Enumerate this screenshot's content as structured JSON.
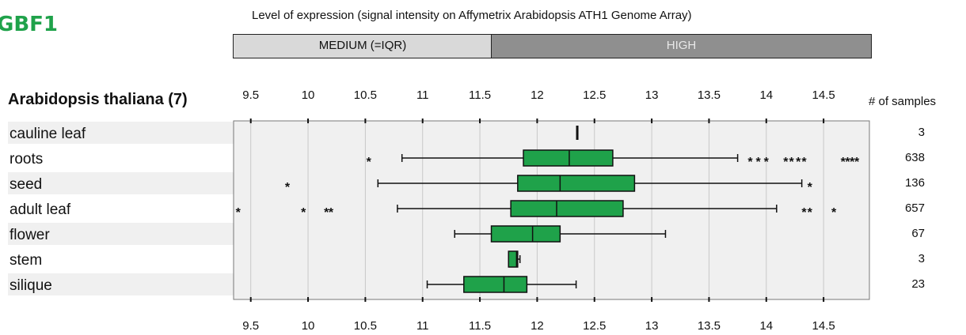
{
  "gene": "GBF1",
  "level_title": "Level of expression (signal intensity on Affymetrix Arabidopsis ATH1 Genome Array)",
  "levels": {
    "medium": "MEDIUM (=IQR)",
    "high": "HIGH"
  },
  "species_label": "Arabidopsis thaliana (7)",
  "samples_header": "# of samples",
  "colors": {
    "box": "#1fa24a",
    "plot_bg": "#f0f0f0",
    "title_green": "#1fa24a"
  },
  "chart_data": {
    "type": "boxplot",
    "xlim": [
      9.35,
      14.9
    ],
    "ticks": [
      "9.5",
      "10",
      "10.5",
      "11",
      "11.5",
      "12",
      "12.5",
      "13",
      "13.5",
      "14",
      "14.5"
    ],
    "tick_values": [
      9.5,
      10,
      10.5,
      11,
      11.5,
      12,
      12.5,
      13,
      13.5,
      14,
      14.5
    ],
    "grid": true,
    "rows": [
      {
        "tissue": "cauline leaf",
        "samples": "3",
        "median": 12.35,
        "marker_only": true
      },
      {
        "tissue": "roots",
        "samples": "638",
        "whisker_low": 10.82,
        "q1": 11.88,
        "median": 12.28,
        "q3": 12.66,
        "whisker_high": 13.75,
        "outliers": [
          10.53,
          13.86,
          13.93,
          14.0,
          14.17,
          14.22,
          14.28,
          14.33,
          14.67,
          14.71,
          14.75,
          14.79
        ]
      },
      {
        "tissue": "seed",
        "samples": "136",
        "whisker_low": 10.61,
        "q1": 11.83,
        "median": 12.2,
        "q3": 12.85,
        "whisker_high": 14.31,
        "outliers": [
          9.82,
          14.38
        ]
      },
      {
        "tissue": "adult leaf",
        "samples": "657",
        "whisker_low": 10.78,
        "q1": 11.77,
        "median": 12.17,
        "q3": 12.75,
        "whisker_high": 14.09,
        "outliers": [
          9.39,
          9.96,
          10.16,
          10.2,
          14.33,
          14.38,
          14.59
        ]
      },
      {
        "tissue": "flower",
        "samples": "67",
        "whisker_low": 11.28,
        "q1": 11.6,
        "median": 11.96,
        "q3": 12.2,
        "whisker_high": 13.12,
        "outliers": []
      },
      {
        "tissue": "stem",
        "samples": "3",
        "whisker_low": 11.75,
        "q1": 11.75,
        "median": 11.82,
        "q3": 11.83,
        "whisker_high": 11.85,
        "outliers": []
      },
      {
        "tissue": "silique",
        "samples": "23",
        "whisker_low": 11.04,
        "q1": 11.36,
        "median": 11.71,
        "q3": 11.91,
        "whisker_high": 12.34,
        "outliers": []
      }
    ]
  }
}
